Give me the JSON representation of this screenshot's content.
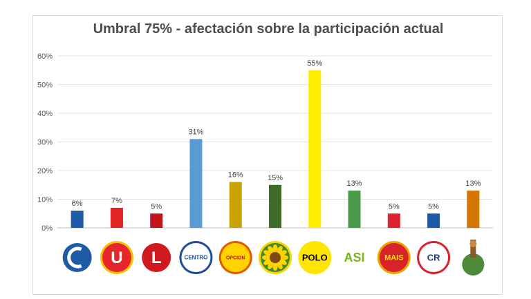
{
  "chart_data": {
    "type": "bar",
    "title": "Umbral 75% - afectación sobre la participación actual",
    "xlabel": "",
    "ylabel": "",
    "ylim": [
      0,
      60
    ],
    "yticks": [
      "0%",
      "10%",
      "20%",
      "30%",
      "40%",
      "50%",
      "60%"
    ],
    "grid": true,
    "legend": "none",
    "categories": [
      {
        "logo": "conservador-logo",
        "color": "#1f5aa6"
      },
      {
        "logo": "la-u-logo",
        "color": "#e02424",
        "logo_text": "U"
      },
      {
        "logo": "liberal-logo",
        "color": "#c0161c",
        "logo_text": "L"
      },
      {
        "logo": "centro-democratico-logo",
        "color": "#5b9bd5",
        "logo_text": "CENTRO"
      },
      {
        "logo": "opcion-ciudadana-logo",
        "color": "#c9a400",
        "logo_text": "OPCION"
      },
      {
        "logo": "alianza-verde-logo",
        "color": "#3f6b28"
      },
      {
        "logo": "polo-logo",
        "color": "#ffee00",
        "logo_text": "POLO"
      },
      {
        "logo": "asi-logo",
        "color": "#4a9a4a",
        "logo_text": "ASI"
      },
      {
        "logo": "mais-logo",
        "color": "#e02030",
        "logo_text": "MAIS"
      },
      {
        "logo": "cambio-radical-logo",
        "color": "#1f5aa6",
        "logo_text": "CR"
      },
      {
        "logo": "aico-logo",
        "color": "#d47500"
      }
    ],
    "values": [
      6,
      7,
      5,
      31,
      16,
      15,
      55,
      13,
      5,
      5,
      13
    ],
    "data_labels": [
      "6%",
      "7%",
      "5%",
      "31%",
      "16%",
      "15%",
      "55%",
      "13%",
      "5%",
      "5%",
      "13%"
    ]
  }
}
